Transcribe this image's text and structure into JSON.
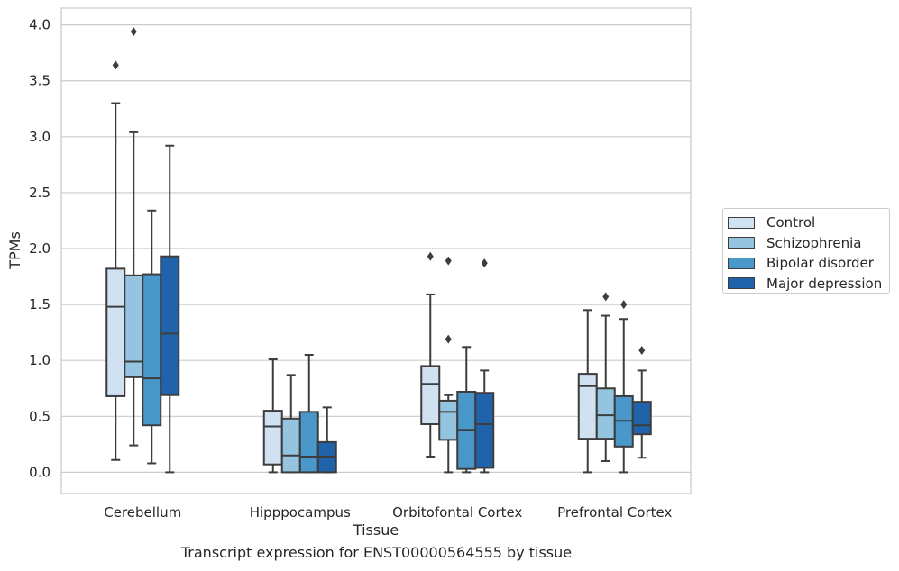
{
  "caption": "Transcript expression for ENST00000564555 by tissue",
  "chart_data": {
    "type": "box",
    "xlabel": "Tissue",
    "ylabel": "TPMs",
    "ylim": [
      -0.19,
      4.15
    ],
    "yticks": [
      0.0,
      0.5,
      1.0,
      1.5,
      2.0,
      2.5,
      3.0,
      3.5,
      4.0
    ],
    "ytick_labels": [
      "0.0",
      "0.5",
      "1.0",
      "1.5",
      "2.0",
      "2.5",
      "3.0",
      "3.5",
      "4.0"
    ],
    "grid": "horizontal",
    "legend_position": "right",
    "categories": [
      "Cerebellum",
      "Hipppocampus",
      "Orbitofontal Cortex",
      "Prefrontal Cortex"
    ],
    "series": [
      {
        "name": "Control",
        "color": "#d0e1f2",
        "boxes": [
          {
            "min": 0.11,
            "q1": 0.68,
            "median": 1.48,
            "q3": 1.82,
            "max": 3.3,
            "outliers": [
              3.64
            ]
          },
          {
            "min": 0.0,
            "q1": 0.07,
            "median": 0.41,
            "q3": 0.55,
            "max": 1.01,
            "outliers": []
          },
          {
            "min": 0.14,
            "q1": 0.43,
            "median": 0.79,
            "q3": 0.95,
            "max": 1.59,
            "outliers": [
              1.93
            ]
          },
          {
            "min": 0.0,
            "q1": 0.3,
            "median": 0.77,
            "q3": 0.88,
            "max": 1.45,
            "outliers": []
          }
        ]
      },
      {
        "name": "Schizophrenia",
        "color": "#94c4df",
        "boxes": [
          {
            "min": 0.24,
            "q1": 0.85,
            "median": 0.99,
            "q3": 1.76,
            "max": 3.04,
            "outliers": [
              3.94
            ]
          },
          {
            "min": 0.0,
            "q1": 0.0,
            "median": 0.15,
            "q3": 0.48,
            "max": 0.87,
            "outliers": []
          },
          {
            "min": 0.0,
            "q1": 0.29,
            "median": 0.54,
            "q3": 0.64,
            "max": 0.69,
            "outliers": [
              1.19,
              1.89
            ]
          },
          {
            "min": 0.1,
            "q1": 0.3,
            "median": 0.51,
            "q3": 0.75,
            "max": 1.4,
            "outliers": [
              1.57
            ]
          }
        ]
      },
      {
        "name": "Bipolar disorder",
        "color": "#4a98c9",
        "boxes": [
          {
            "min": 0.08,
            "q1": 0.42,
            "median": 0.84,
            "q3": 1.77,
            "max": 2.34,
            "outliers": []
          },
          {
            "min": 0.0,
            "q1": 0.0,
            "median": 0.14,
            "q3": 0.54,
            "max": 1.05,
            "outliers": []
          },
          {
            "min": 0.0,
            "q1": 0.03,
            "median": 0.38,
            "q3": 0.72,
            "max": 1.12,
            "outliers": []
          },
          {
            "min": 0.0,
            "q1": 0.23,
            "median": 0.46,
            "q3": 0.68,
            "max": 1.37,
            "outliers": [
              1.5
            ]
          }
        ]
      },
      {
        "name": "Major depression",
        "color": "#2163aa",
        "boxes": [
          {
            "min": 0.0,
            "q1": 0.69,
            "median": 1.24,
            "q3": 1.93,
            "max": 2.92,
            "outliers": []
          },
          {
            "min": 0.0,
            "q1": 0.0,
            "median": 0.14,
            "q3": 0.27,
            "max": 0.58,
            "outliers": []
          },
          {
            "min": 0.0,
            "q1": 0.04,
            "median": 0.43,
            "q3": 0.71,
            "max": 0.91,
            "outliers": [
              1.87
            ]
          },
          {
            "min": 0.13,
            "q1": 0.34,
            "median": 0.42,
            "q3": 0.63,
            "max": 0.91,
            "outliers": [
              1.09
            ]
          }
        ]
      }
    ]
  }
}
